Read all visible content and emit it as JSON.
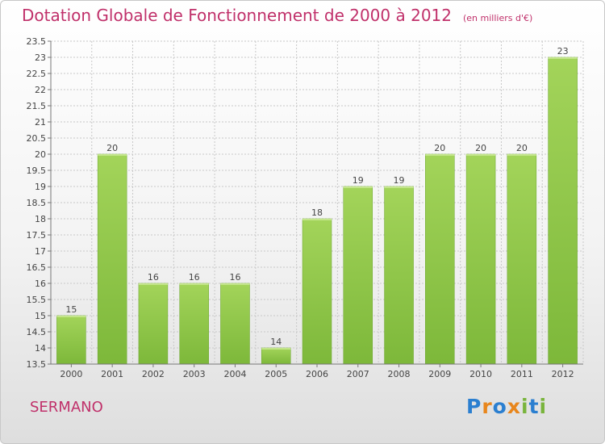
{
  "header": {
    "title": "Dotation Globale de Fonctionnement de 2000 à 2012",
    "subtitle": "(en milliers d'€)"
  },
  "footer": {
    "commune": "SERMANO",
    "logo_text": "Proxiti",
    "logo_colors": [
      "#2b7fd0",
      "#e8861c",
      "#2b7fd0",
      "#e8861c",
      "#79b43c",
      "#2b7fd0",
      "#79b43c"
    ]
  },
  "chart_data": {
    "type": "bar",
    "title": "Dotation Globale de Fonctionnement de 2000 à 2012",
    "subtitle": "(en milliers d'€)",
    "categories": [
      "2000",
      "2001",
      "2002",
      "2003",
      "2004",
      "2005",
      "2006",
      "2007",
      "2008",
      "2009",
      "2010",
      "2011",
      "2012"
    ],
    "values": [
      15,
      20,
      16,
      16,
      16,
      14,
      18,
      19,
      19,
      20,
      20,
      20,
      23
    ],
    "data_labels": [
      "15",
      "20",
      "16",
      "16",
      "16",
      "14",
      "18",
      "19",
      "19",
      "20",
      "20",
      "20",
      "23"
    ],
    "ylim": [
      13.5,
      23.5
    ],
    "yticks": [
      13.5,
      14,
      14.5,
      15,
      15.5,
      16,
      16.5,
      17,
      17.5,
      18,
      18.5,
      19,
      19.5,
      20,
      20.5,
      21,
      21.5,
      22,
      22.5,
      23,
      23.5
    ],
    "ytick_labels": [
      "13.5",
      "14",
      "14.5",
      "15",
      "15.5",
      "16",
      "16.5",
      "17",
      "17.5",
      "18",
      "18.5",
      "19",
      "19.5",
      "20",
      "20.5",
      "21",
      "21.5",
      "22",
      "22.5",
      "23",
      "23.5"
    ],
    "grid": true,
    "bar_color": "#7db83a",
    "bar_color_light": "#a3d45a"
  }
}
